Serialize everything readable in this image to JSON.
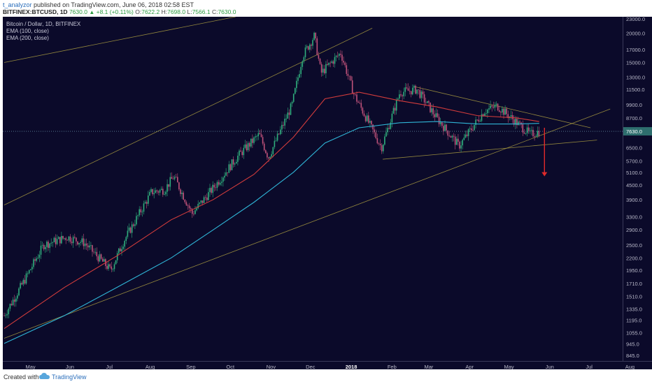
{
  "header": {
    "author": "t_analyzor",
    "published_text": "published on TradingView.com, June 06, 2018 02:58 EST",
    "symbol": "BITFINEX:BTCUSD, 1D",
    "last": "7630.0",
    "change": "+8.1 (+0.11%)",
    "open_label": "O:",
    "open": "7622.2",
    "high_label": "H:",
    "high": "7698.0",
    "low_label": "L:",
    "low": "7566.1",
    "close_label": "C:",
    "close": "7630.0"
  },
  "legend": {
    "title": "Bitcoin / Dollar, 1D, BITFINEX",
    "ema100": "EMA (100, close)",
    "ema200": "EMA (200, close)"
  },
  "footer": {
    "created_with": "Created with",
    "brand": "TradingView"
  },
  "colors": {
    "background": "#0b0a2a",
    "up_candle": "#2fae7d",
    "down_candle": "#c0527a",
    "ema100": "#d23c3c",
    "ema200": "#2fb5d6",
    "trendline": "#b5a642",
    "arrow": "#e02a2a",
    "price_tag": "#2e6e6e"
  },
  "chart_data": {
    "type": "candlestick",
    "y_scale": "log",
    "ylim": [
      800,
      23500
    ],
    "y_ticks": [
      "23000.0",
      "20000.0",
      "17000.0",
      "15000.0",
      "13000.0",
      "11500.0",
      "9900.0",
      "8700.0",
      "7630.0",
      "6500.0",
      "5700.0",
      "5100.0",
      "4500.0",
      "3900.0",
      "3300.0",
      "2900.0",
      "2500.0",
      "2200.0",
      "1950.0",
      "1710.0",
      "1510.0",
      "1335.0",
      "1195.0",
      "1055.0",
      "945.0",
      "845.0"
    ],
    "x_ticks": [
      "May",
      "Jun",
      "Jul",
      "Aug",
      "Sep",
      "Oct",
      "Nov",
      "Dec",
      "2018",
      "Feb",
      "Mar",
      "Apr",
      "May",
      "Jun",
      "Jul",
      "Aug"
    ],
    "last_price": 7630.0,
    "close_path": [
      [
        "2017-04-25",
        1250
      ],
      [
        "2017-05-10",
        1750
      ],
      [
        "2017-05-25",
        2500
      ],
      [
        "2017-06-12",
        2700
      ],
      [
        "2017-06-25",
        2550
      ],
      [
        "2017-07-15",
        1950
      ],
      [
        "2017-07-25",
        2600
      ],
      [
        "2017-08-15",
        4200
      ],
      [
        "2017-08-25",
        4300
      ],
      [
        "2017-09-01",
        4900
      ],
      [
        "2017-09-15",
        3400
      ],
      [
        "2017-09-30",
        4300
      ],
      [
        "2017-10-20",
        6000
      ],
      [
        "2017-11-05",
        7400
      ],
      [
        "2017-11-12",
        5900
      ],
      [
        "2017-11-30",
        9900
      ],
      [
        "2017-12-08",
        16000
      ],
      [
        "2017-12-17",
        19500
      ],
      [
        "2017-12-22",
        13500
      ],
      [
        "2018-01-06",
        16500
      ],
      [
        "2018-01-16",
        11000
      ],
      [
        "2018-02-06",
        6500
      ],
      [
        "2018-02-20",
        11200
      ],
      [
        "2018-03-05",
        11500
      ],
      [
        "2018-03-20",
        8700
      ],
      [
        "2018-04-06",
        6600
      ],
      [
        "2018-04-25",
        9300
      ],
      [
        "2018-05-05",
        9800
      ],
      [
        "2018-05-20",
        8300
      ],
      [
        "2018-05-30",
        7400
      ],
      [
        "2018-06-06",
        7630
      ]
    ],
    "ema100": [
      [
        "2017-04-25",
        1100
      ],
      [
        "2017-06-10",
        1650
      ],
      [
        "2017-07-20",
        2250
      ],
      [
        "2017-08-30",
        3200
      ],
      [
        "2017-10-01",
        3900
      ],
      [
        "2017-11-01",
        5000
      ],
      [
        "2017-12-01",
        7200
      ],
      [
        "2017-12-25",
        10500
      ],
      [
        "2018-01-20",
        11200
      ],
      [
        "2018-02-20",
        10300
      ],
      [
        "2018-03-20",
        9700
      ],
      [
        "2018-04-20",
        8900
      ],
      [
        "2018-05-20",
        8700
      ],
      [
        "2018-06-06",
        8400
      ]
    ],
    "ema200": [
      [
        "2017-04-25",
        950
      ],
      [
        "2017-06-10",
        1250
      ],
      [
        "2017-07-20",
        1650
      ],
      [
        "2017-08-30",
        2200
      ],
      [
        "2017-10-01",
        2900
      ],
      [
        "2017-11-01",
        3800
      ],
      [
        "2017-12-01",
        5100
      ],
      [
        "2017-12-25",
        6800
      ],
      [
        "2018-01-20",
        7900
      ],
      [
        "2018-02-20",
        8300
      ],
      [
        "2018-03-20",
        8400
      ],
      [
        "2018-04-20",
        8200
      ],
      [
        "2018-05-20",
        8200
      ],
      [
        "2018-06-06",
        8250
      ]
    ],
    "trendlines": [
      {
        "from": [
          "2017-04-25",
          1000
        ],
        "to": [
          "2018-07-30",
          9500
        ]
      },
      {
        "from": [
          "2017-04-25",
          3700
        ],
        "to": [
          "2018-01-30",
          21000
        ]
      },
      {
        "from": [
          "2017-04-25",
          15000
        ],
        "to": [
          "2017-10-18",
          23500
        ]
      },
      {
        "from": [
          "2018-03-04",
          11800
        ],
        "to": [
          "2018-07-15",
          7900
        ]
      },
      {
        "from": [
          "2018-02-07",
          5800
        ],
        "to": [
          "2018-07-20",
          7000
        ]
      }
    ],
    "arrow": {
      "from": [
        "2018-06-10",
        7900
      ],
      "to": [
        "2018-06-10",
        4900
      ]
    }
  }
}
